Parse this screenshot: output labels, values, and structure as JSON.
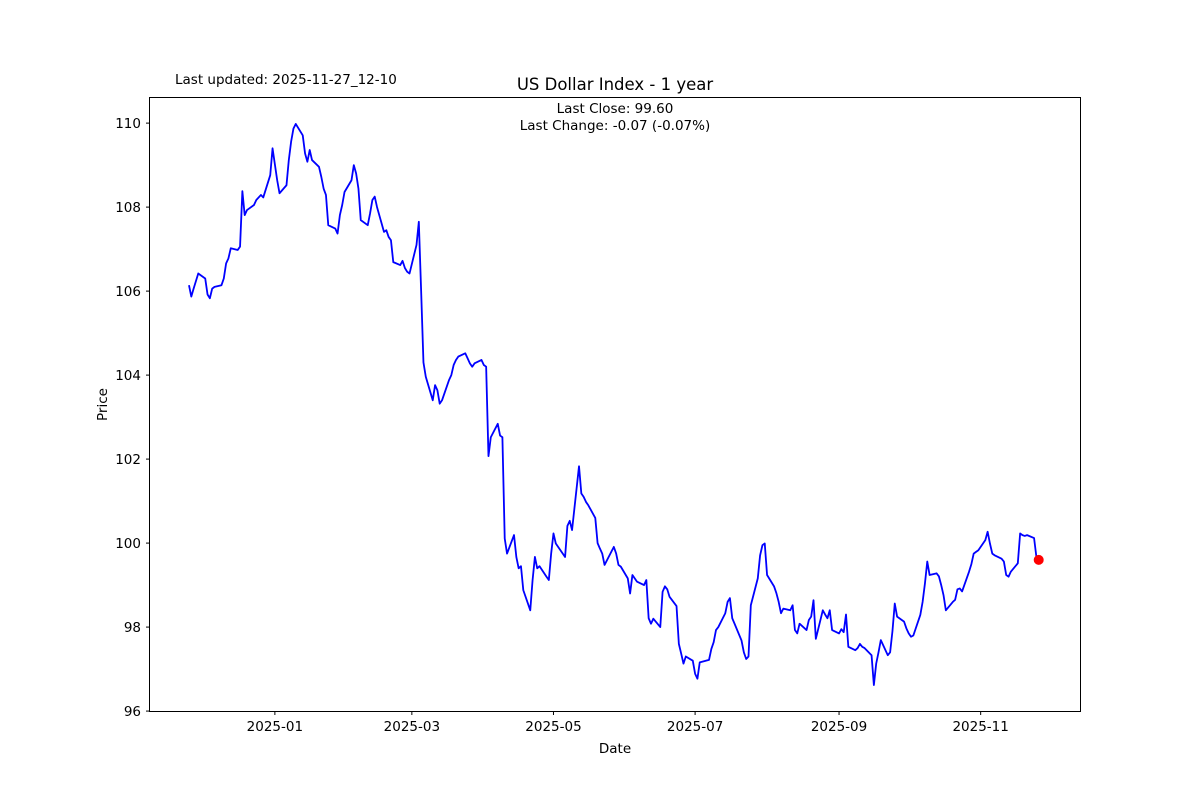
{
  "figure": {
    "last_updated": "Last updated: 2025-11-27_12-10",
    "background_color": "#ffffff"
  },
  "chart_data": {
    "type": "line",
    "title": "US Dollar Index - 1 year",
    "subtitle_lines": [
      "Last Close: 99.60",
      "Last Change: -0.07 (-0.07%)"
    ],
    "xlabel": "Date",
    "ylabel": "Price",
    "grid": false,
    "legend_position": "none",
    "line_color": "#0000ff",
    "last_point_marker_color": "#ff0000",
    "last_close": 99.6,
    "last_change": -0.07,
    "last_change_pct": "-0.07%",
    "ylim": [
      95.99,
      110.61
    ],
    "xlim": [
      "2024-11-08",
      "2025-12-14"
    ],
    "y_ticks": [
      96,
      98,
      100,
      102,
      104,
      106,
      108,
      110
    ],
    "x_ticks": [
      {
        "date": "2025-01-01",
        "label": "2025-01"
      },
      {
        "date": "2025-03-01",
        "label": "2025-03"
      },
      {
        "date": "2025-05-01",
        "label": "2025-05"
      },
      {
        "date": "2025-07-01",
        "label": "2025-07"
      },
      {
        "date": "2025-09-01",
        "label": "2025-09"
      },
      {
        "date": "2025-11-01",
        "label": "2025-11"
      }
    ],
    "series": [
      {
        "name": "US Dollar Index",
        "points": [
          [
            "2024-11-25",
            106.14
          ],
          [
            "2024-11-26",
            105.87
          ],
          [
            "2024-11-27",
            106.06
          ],
          [
            "2024-11-29",
            106.42
          ],
          [
            "2024-12-02",
            106.3
          ],
          [
            "2024-12-03",
            105.92
          ],
          [
            "2024-12-04",
            105.83
          ],
          [
            "2024-12-05",
            106.06
          ],
          [
            "2024-12-06",
            106.1
          ],
          [
            "2024-12-09",
            106.14
          ],
          [
            "2024-12-10",
            106.3
          ],
          [
            "2024-12-11",
            106.66
          ],
          [
            "2024-12-12",
            106.78
          ],
          [
            "2024-12-13",
            107.02
          ],
          [
            "2024-12-16",
            106.98
          ],
          [
            "2024-12-17",
            107.06
          ],
          [
            "2024-12-18",
            108.38
          ],
          [
            "2024-12-19",
            107.81
          ],
          [
            "2024-12-20",
            107.93
          ],
          [
            "2024-12-23",
            108.05
          ],
          [
            "2024-12-24",
            108.17
          ],
          [
            "2024-12-26",
            108.29
          ],
          [
            "2024-12-27",
            108.23
          ],
          [
            "2024-12-30",
            108.76
          ],
          [
            "2024-12-31",
            109.4
          ],
          [
            "2025-01-02",
            108.64
          ],
          [
            "2025-01-03",
            108.33
          ],
          [
            "2025-01-06",
            108.52
          ],
          [
            "2025-01-07",
            109.12
          ],
          [
            "2025-01-08",
            109.56
          ],
          [
            "2025-01-09",
            109.87
          ],
          [
            "2025-01-10",
            109.98
          ],
          [
            "2025-01-13",
            109.71
          ],
          [
            "2025-01-14",
            109.28
          ],
          [
            "2025-01-15",
            109.08
          ],
          [
            "2025-01-16",
            109.36
          ],
          [
            "2025-01-17",
            109.12
          ],
          [
            "2025-01-20",
            108.96
          ],
          [
            "2025-01-21",
            108.72
          ],
          [
            "2025-01-22",
            108.44
          ],
          [
            "2025-01-23",
            108.29
          ],
          [
            "2025-01-24",
            107.57
          ],
          [
            "2025-01-27",
            107.49
          ],
          [
            "2025-01-28",
            107.37
          ],
          [
            "2025-01-29",
            107.81
          ],
          [
            "2025-01-30",
            108.05
          ],
          [
            "2025-01-31",
            108.36
          ],
          [
            "2025-02-03",
            108.64
          ],
          [
            "2025-02-04",
            109.0
          ],
          [
            "2025-02-05",
            108.8
          ],
          [
            "2025-02-06",
            108.44
          ],
          [
            "2025-02-07",
            107.69
          ],
          [
            "2025-02-10",
            107.57
          ],
          [
            "2025-02-11",
            107.85
          ],
          [
            "2025-02-12",
            108.17
          ],
          [
            "2025-02-13",
            108.25
          ],
          [
            "2025-02-14",
            108.0
          ],
          [
            "2025-02-17",
            107.41
          ],
          [
            "2025-02-18",
            107.45
          ],
          [
            "2025-02-19",
            107.29
          ],
          [
            "2025-02-20",
            107.21
          ],
          [
            "2025-02-21",
            106.69
          ],
          [
            "2025-02-24",
            106.62
          ],
          [
            "2025-02-25",
            106.72
          ],
          [
            "2025-02-26",
            106.55
          ],
          [
            "2025-02-27",
            106.46
          ],
          [
            "2025-02-28",
            106.42
          ],
          [
            "2025-03-03",
            107.1
          ],
          [
            "2025-03-04",
            107.65
          ],
          [
            "2025-03-05",
            106.0
          ],
          [
            "2025-03-06",
            104.3
          ],
          [
            "2025-03-07",
            103.96
          ],
          [
            "2025-03-10",
            103.4
          ],
          [
            "2025-03-11",
            103.76
          ],
          [
            "2025-03-12",
            103.64
          ],
          [
            "2025-03-13",
            103.32
          ],
          [
            "2025-03-14",
            103.4
          ],
          [
            "2025-03-17",
            103.88
          ],
          [
            "2025-03-18",
            104.0
          ],
          [
            "2025-03-19",
            104.24
          ],
          [
            "2025-03-20",
            104.36
          ],
          [
            "2025-03-21",
            104.44
          ],
          [
            "2025-03-24",
            104.52
          ],
          [
            "2025-03-25",
            104.4
          ],
          [
            "2025-03-26",
            104.28
          ],
          [
            "2025-03-27",
            104.2
          ],
          [
            "2025-03-28",
            104.28
          ],
          [
            "2025-03-31",
            104.36
          ],
          [
            "2025-04-01",
            104.24
          ],
          [
            "2025-04-02",
            104.2
          ],
          [
            "2025-04-03",
            102.07
          ],
          [
            "2025-04-04",
            102.52
          ],
          [
            "2025-04-07",
            102.84
          ],
          [
            "2025-04-08",
            102.56
          ],
          [
            "2025-04-09",
            102.52
          ],
          [
            "2025-04-10",
            100.11
          ],
          [
            "2025-04-11",
            99.75
          ],
          [
            "2025-04-14",
            100.19
          ],
          [
            "2025-04-15",
            99.67
          ],
          [
            "2025-04-16",
            99.4
          ],
          [
            "2025-04-17",
            99.45
          ],
          [
            "2025-04-18",
            98.88
          ],
          [
            "2025-04-21",
            98.4
          ],
          [
            "2025-04-22",
            99.12
          ],
          [
            "2025-04-23",
            99.67
          ],
          [
            "2025-04-24",
            99.4
          ],
          [
            "2025-04-25",
            99.45
          ],
          [
            "2025-04-28",
            99.2
          ],
          [
            "2025-04-29",
            99.12
          ],
          [
            "2025-04-30",
            99.75
          ],
          [
            "2025-05-01",
            100.23
          ],
          [
            "2025-05-02",
            99.99
          ],
          [
            "2025-05-05",
            99.75
          ],
          [
            "2025-05-06",
            99.67
          ],
          [
            "2025-05-07",
            100.41
          ],
          [
            "2025-05-08",
            100.53
          ],
          [
            "2025-05-09",
            100.31
          ],
          [
            "2025-05-12",
            101.83
          ],
          [
            "2025-05-13",
            101.18
          ],
          [
            "2025-05-14",
            101.1
          ],
          [
            "2025-05-15",
            100.98
          ],
          [
            "2025-05-16",
            100.9
          ],
          [
            "2025-05-19",
            100.6
          ],
          [
            "2025-05-20",
            100.0
          ],
          [
            "2025-05-21",
            99.87
          ],
          [
            "2025-05-22",
            99.75
          ],
          [
            "2025-05-23",
            99.48
          ],
          [
            "2025-05-27",
            99.91
          ],
          [
            "2025-05-28",
            99.75
          ],
          [
            "2025-05-29",
            99.48
          ],
          [
            "2025-05-30",
            99.44
          ],
          [
            "2025-06-02",
            99.16
          ],
          [
            "2025-06-03",
            98.8
          ],
          [
            "2025-06-04",
            99.24
          ],
          [
            "2025-06-05",
            99.16
          ],
          [
            "2025-06-06",
            99.08
          ],
          [
            "2025-06-09",
            99.0
          ],
          [
            "2025-06-10",
            99.12
          ],
          [
            "2025-06-11",
            98.21
          ],
          [
            "2025-06-12",
            98.08
          ],
          [
            "2025-06-13",
            98.2
          ],
          [
            "2025-06-16",
            98.0
          ],
          [
            "2025-06-17",
            98.84
          ],
          [
            "2025-06-18",
            98.97
          ],
          [
            "2025-06-19",
            98.9
          ],
          [
            "2025-06-20",
            98.72
          ],
          [
            "2025-06-23",
            98.5
          ],
          [
            "2025-06-24",
            97.6
          ],
          [
            "2025-06-25",
            97.37
          ],
          [
            "2025-06-26",
            97.13
          ],
          [
            "2025-06-27",
            97.3
          ],
          [
            "2025-06-30",
            97.2
          ],
          [
            "2025-07-01",
            96.89
          ],
          [
            "2025-07-02",
            96.77
          ],
          [
            "2025-07-03",
            97.16
          ],
          [
            "2025-07-07",
            97.22
          ],
          [
            "2025-07-08",
            97.48
          ],
          [
            "2025-07-09",
            97.64
          ],
          [
            "2025-07-10",
            97.93
          ],
          [
            "2025-07-11",
            98.0
          ],
          [
            "2025-07-14",
            98.33
          ],
          [
            "2025-07-15",
            98.6
          ],
          [
            "2025-07-16",
            98.69
          ],
          [
            "2025-07-17",
            98.21
          ],
          [
            "2025-07-18",
            98.08
          ],
          [
            "2025-07-21",
            97.68
          ],
          [
            "2025-07-22",
            97.4
          ],
          [
            "2025-07-23",
            97.24
          ],
          [
            "2025-07-24",
            97.3
          ],
          [
            "2025-07-25",
            98.52
          ],
          [
            "2025-07-28",
            99.16
          ],
          [
            "2025-07-29",
            99.71
          ],
          [
            "2025-07-30",
            99.95
          ],
          [
            "2025-07-31",
            99.99
          ],
          [
            "2025-08-01",
            99.24
          ],
          [
            "2025-08-04",
            98.97
          ],
          [
            "2025-08-05",
            98.81
          ],
          [
            "2025-08-06",
            98.6
          ],
          [
            "2025-08-07",
            98.33
          ],
          [
            "2025-08-08",
            98.44
          ],
          [
            "2025-08-11",
            98.4
          ],
          [
            "2025-08-12",
            98.52
          ],
          [
            "2025-08-13",
            97.93
          ],
          [
            "2025-08-14",
            97.85
          ],
          [
            "2025-08-15",
            98.08
          ],
          [
            "2025-08-18",
            97.93
          ],
          [
            "2025-08-19",
            98.17
          ],
          [
            "2025-08-20",
            98.25
          ],
          [
            "2025-08-21",
            98.64
          ],
          [
            "2025-08-22",
            97.72
          ],
          [
            "2025-08-25",
            98.4
          ],
          [
            "2025-08-26",
            98.3
          ],
          [
            "2025-08-27",
            98.21
          ],
          [
            "2025-08-28",
            98.4
          ],
          [
            "2025-08-29",
            97.93
          ],
          [
            "2025-09-01",
            97.85
          ],
          [
            "2025-09-02",
            97.95
          ],
          [
            "2025-09-03",
            97.88
          ],
          [
            "2025-09-04",
            98.3
          ],
          [
            "2025-09-05",
            97.53
          ],
          [
            "2025-09-08",
            97.45
          ],
          [
            "2025-09-09",
            97.5
          ],
          [
            "2025-09-10",
            97.6
          ],
          [
            "2025-09-11",
            97.53
          ],
          [
            "2025-09-12",
            97.5
          ],
          [
            "2025-09-15",
            97.33
          ],
          [
            "2025-09-16",
            96.62
          ],
          [
            "2025-09-17",
            97.13
          ],
          [
            "2025-09-18",
            97.4
          ],
          [
            "2025-09-19",
            97.69
          ],
          [
            "2025-09-22",
            97.33
          ],
          [
            "2025-09-23",
            97.4
          ],
          [
            "2025-09-24",
            97.9
          ],
          [
            "2025-09-25",
            98.56
          ],
          [
            "2025-09-26",
            98.25
          ],
          [
            "2025-09-29",
            98.13
          ],
          [
            "2025-09-30",
            97.97
          ],
          [
            "2025-10-01",
            97.85
          ],
          [
            "2025-10-02",
            97.77
          ],
          [
            "2025-10-03",
            97.8
          ],
          [
            "2025-10-06",
            98.29
          ],
          [
            "2025-10-07",
            98.6
          ],
          [
            "2025-10-08",
            99.04
          ],
          [
            "2025-10-09",
            99.56
          ],
          [
            "2025-10-10",
            99.24
          ],
          [
            "2025-10-13",
            99.28
          ],
          [
            "2025-10-14",
            99.21
          ],
          [
            "2025-10-15",
            99.0
          ],
          [
            "2025-10-16",
            98.76
          ],
          [
            "2025-10-17",
            98.4
          ],
          [
            "2025-10-20",
            98.6
          ],
          [
            "2025-10-21",
            98.65
          ],
          [
            "2025-10-22",
            98.9
          ],
          [
            "2025-10-23",
            98.92
          ],
          [
            "2025-10-24",
            98.85
          ],
          [
            "2025-10-27",
            99.32
          ],
          [
            "2025-10-28",
            99.5
          ],
          [
            "2025-10-29",
            99.75
          ],
          [
            "2025-10-30",
            99.79
          ],
          [
            "2025-10-31",
            99.83
          ],
          [
            "2025-11-03",
            100.07
          ],
          [
            "2025-11-04",
            100.27
          ],
          [
            "2025-11-05",
            99.99
          ],
          [
            "2025-11-06",
            99.75
          ],
          [
            "2025-11-07",
            99.71
          ],
          [
            "2025-11-10",
            99.63
          ],
          [
            "2025-11-11",
            99.56
          ],
          [
            "2025-11-12",
            99.24
          ],
          [
            "2025-11-13",
            99.2
          ],
          [
            "2025-11-14",
            99.32
          ],
          [
            "2025-11-17",
            99.52
          ],
          [
            "2025-11-18",
            100.23
          ],
          [
            "2025-11-19",
            100.19
          ],
          [
            "2025-11-20",
            100.17
          ],
          [
            "2025-11-21",
            100.19
          ],
          [
            "2025-11-24",
            100.12
          ],
          [
            "2025-11-25",
            99.67
          ],
          [
            "2025-11-26",
            99.6
          ]
        ]
      }
    ]
  }
}
